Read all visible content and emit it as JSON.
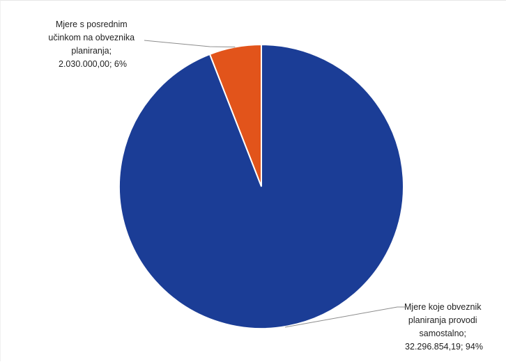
{
  "chart_data": {
    "type": "pie",
    "title": "",
    "slices": [
      {
        "name": "Mjere s posrednim učinkom na obveznika planiranja",
        "value": 2030000.0,
        "value_label": "2.030.000,00",
        "percent_label": "6%",
        "color": "#e2541b",
        "label_lines": [
          "Mjere s posrednim",
          "učinkom na obveznika",
          "planiranja;",
          "2.030.000,00; 6%"
        ]
      },
      {
        "name": "Mjere koje obveznik planiranja provodi samostalno",
        "value": 32296854.19,
        "value_label": "32.296.854,19",
        "percent_label": "94%",
        "color": "#1b3d96",
        "label_lines": [
          "Mjere koje obveznik",
          "planiranja provodi",
          "samostalno;",
          "32.296.854,19; 94%"
        ]
      }
    ],
    "legend": "none"
  }
}
